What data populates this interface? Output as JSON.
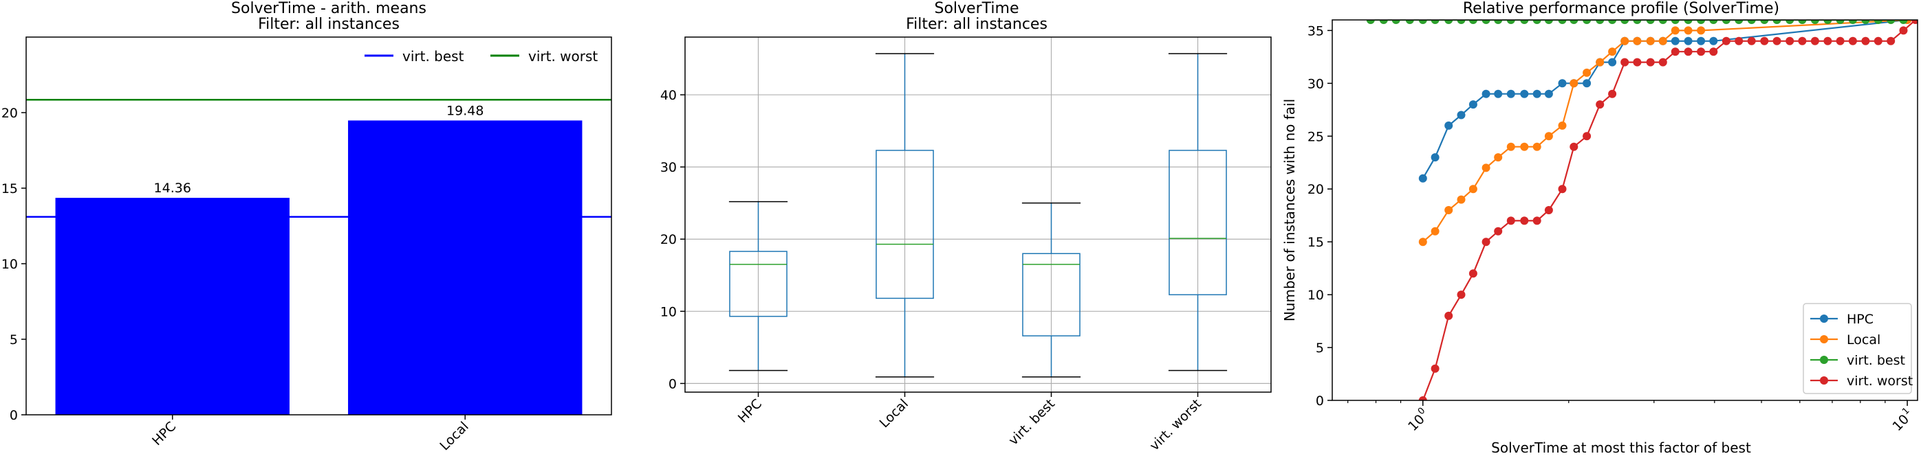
{
  "chart_data": [
    {
      "type": "bar",
      "title": "SolverTime - arith. means",
      "subtitle": "Filter: all instances",
      "categories": [
        "HPC",
        "Local"
      ],
      "values": [
        14.36,
        19.48
      ],
      "data_labels": [
        "14.36",
        "19.48"
      ],
      "bar_color": "#0000ff",
      "reference_lines": [
        {
          "name": "virt. best",
          "value": 13.1,
          "color": "#0000ff"
        },
        {
          "name": "virt. worst",
          "value": 20.85,
          "color": "#008000"
        }
      ],
      "ylim": [
        0,
        25
      ],
      "yticks": [
        "0",
        "5",
        "10",
        "15",
        "20"
      ],
      "legend": {
        "placement": "top-right",
        "entries": [
          "virt. best",
          "virt. worst"
        ]
      },
      "grid": false
    },
    {
      "type": "box",
      "title": "SolverTime",
      "subtitle": "Filter: all instances",
      "categories": [
        "HPC",
        "Local",
        "virt. best",
        "virt. worst"
      ],
      "boxes": [
        {
          "whisker_low": 1.8,
          "q1": 9.3,
          "median": 16.5,
          "q3": 18.3,
          "whisker_high": 25.2
        },
        {
          "whisker_low": 0.9,
          "q1": 11.8,
          "median": 19.3,
          "q3": 32.3,
          "whisker_high": 45.7
        },
        {
          "whisker_low": 0.9,
          "q1": 6.6,
          "median": 16.5,
          "q3": 18.0,
          "whisker_high": 25.0
        },
        {
          "whisker_low": 1.8,
          "q1": 12.3,
          "median": 20.1,
          "q3": 32.3,
          "whisker_high": 45.7
        }
      ],
      "box_color": "#1f77b4",
      "median_color": "#2ca02c",
      "ylim": [
        -1.2,
        48
      ],
      "yticks": [
        "0",
        "10",
        "20",
        "30",
        "40"
      ],
      "grid": true
    },
    {
      "type": "line",
      "title": "Relative performance profile (SolverTime)",
      "xlabel": "SolverTime at most this factor of best",
      "ylabel": "Number of instances with no fail",
      "xscale": "log",
      "xlim": [
        0.65,
        10.5
      ],
      "xticks": [
        {
          "value": 1,
          "base": "10",
          "exp": "0"
        },
        {
          "value": 10,
          "base": "10",
          "exp": "1"
        }
      ],
      "ylim": [
        0,
        36
      ],
      "yticks": [
        "0",
        "5",
        "10",
        "15",
        "20",
        "25",
        "30",
        "35"
      ],
      "legend": {
        "placement": "lower-right"
      },
      "grid": false,
      "series": [
        {
          "name": "HPC",
          "color": "#1f77b4",
          "x": [
            1,
            1.06,
            1.13,
            1.2,
            1.27,
            1.35,
            1.43,
            1.52,
            1.62,
            1.72,
            1.82,
            1.94,
            2.05,
            2.18,
            2.32,
            2.46,
            2.61,
            2.77,
            2.95,
            3.13,
            3.32,
            3.53,
            3.75,
            3.98,
            10
          ],
          "y": [
            21,
            23,
            26,
            27,
            28,
            29,
            29,
            29,
            29,
            29,
            29,
            30,
            30,
            30,
            32,
            32,
            34,
            34,
            34,
            34,
            34,
            34,
            34,
            34,
            36
          ]
        },
        {
          "name": "Local",
          "color": "#ff7f0e",
          "x": [
            1,
            1.06,
            1.13,
            1.2,
            1.27,
            1.35,
            1.43,
            1.52,
            1.62,
            1.72,
            1.82,
            1.94,
            2.05,
            2.18,
            2.32,
            2.46,
            2.61,
            2.77,
            2.95,
            3.13,
            3.32,
            3.53,
            3.75,
            10
          ],
          "y": [
            15,
            16,
            18,
            19,
            20,
            22,
            23,
            24,
            24,
            24,
            25,
            26,
            30,
            31,
            32,
            33,
            34,
            34,
            34,
            34,
            35,
            35,
            35,
            36
          ]
        },
        {
          "name": "virt. best",
          "color": "#2ca02c",
          "x": [
            0.78,
            0.83,
            0.88,
            0.94,
            1,
            1.06,
            1.13,
            1.2,
            1.27,
            1.35,
            1.43,
            1.52,
            1.62,
            1.72,
            1.82,
            1.94,
            2.05,
            2.18,
            2.32,
            2.46,
            2.61,
            2.77,
            2.95,
            3.13,
            3.32,
            3.53,
            3.75,
            3.98,
            4.23,
            4.49,
            4.77,
            5.07,
            5.38,
            5.72,
            6.07,
            6.45,
            6.85,
            7.27,
            7.72,
            8.2,
            8.71,
            9.25,
            9.82
          ],
          "y": [
            36,
            36,
            36,
            36,
            36,
            36,
            36,
            36,
            36,
            36,
            36,
            36,
            36,
            36,
            36,
            36,
            36,
            36,
            36,
            36,
            36,
            36,
            36,
            36,
            36,
            36,
            36,
            36,
            36,
            36,
            36,
            36,
            36,
            36,
            36,
            36,
            36,
            36,
            36,
            36,
            36,
            36,
            36
          ]
        },
        {
          "name": "virt. worst",
          "color": "#d62728",
          "x": [
            1,
            1.06,
            1.13,
            1.2,
            1.27,
            1.35,
            1.43,
            1.52,
            1.62,
            1.72,
            1.82,
            1.94,
            2.05,
            2.18,
            2.32,
            2.46,
            2.61,
            2.77,
            2.95,
            3.13,
            3.32,
            3.53,
            3.75,
            3.98,
            4.23,
            4.49,
            4.77,
            5.07,
            5.38,
            5.72,
            6.07,
            6.45,
            6.85,
            7.27,
            7.72,
            8.2,
            8.71,
            9.25,
            9.82,
            10.4
          ],
          "y": [
            0,
            3,
            8,
            10,
            12,
            15,
            16,
            17,
            17,
            17,
            18,
            20,
            24,
            25,
            28,
            29,
            32,
            32,
            32,
            32,
            33,
            33,
            33,
            33,
            34,
            34,
            34,
            34,
            34,
            34,
            34,
            34,
            34,
            34,
            34,
            34,
            34,
            34,
            35,
            36
          ]
        }
      ]
    }
  ]
}
